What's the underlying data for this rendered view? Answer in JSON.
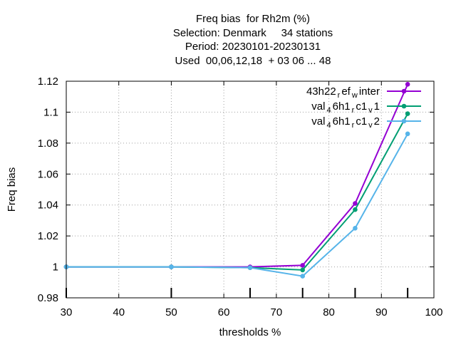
{
  "chart_data": {
    "type": "line",
    "title_lines": [
      "Freq bias  for Rh2m (%)",
      "Selection: Denmark     34 stations",
      "Period: 20230101-20230131",
      "Used  00,06,12,18  + 03 06 ... 48"
    ],
    "xlabel": "thresholds %",
    "ylabel": "Freq bias",
    "xlim": [
      30,
      100
    ],
    "ylim": [
      0.98,
      1.12
    ],
    "x_ticks": [
      30,
      40,
      50,
      60,
      70,
      80,
      90,
      100
    ],
    "y_ticks": [
      0.98,
      1,
      1.02,
      1.04,
      1.06,
      1.08,
      1.1,
      1.12
    ],
    "y_tick_labels": [
      "0.98",
      "1",
      "1.02",
      "1.04",
      "1.06",
      "1.08",
      "1.1",
      "1.12"
    ],
    "grid": true,
    "legend_position": "top-right",
    "data_marker_x": [
      30,
      50,
      65,
      75,
      85,
      95
    ],
    "series": [
      {
        "name_parts": {
          "base": "43h22",
          "sub1": "r",
          "mid": "ef",
          "sub2": "w",
          "tail": "inter"
        },
        "color": "#9400d3",
        "x": [
          30,
          50,
          65,
          75,
          85,
          95
        ],
        "y": [
          1.0,
          1.0,
          1.0,
          1.001,
          1.041,
          1.118
        ]
      },
      {
        "name_parts": {
          "base": "val",
          "sub1": "4",
          "mid": "6h1",
          "sub2": "r",
          "tail": "c1",
          "sub3": "v",
          "tail2": "1"
        },
        "color": "#009e73",
        "x": [
          30,
          50,
          65,
          75,
          85,
          95
        ],
        "y": [
          1.0,
          1.0,
          0.9995,
          0.998,
          1.037,
          1.099
        ]
      },
      {
        "name_parts": {
          "base": "val",
          "sub1": "4",
          "mid": "6h1",
          "sub2": "r",
          "tail": "c1",
          "sub3": "v",
          "tail2": "2"
        },
        "color": "#56b4e9",
        "x": [
          30,
          50,
          65,
          75,
          85,
          95
        ],
        "y": [
          1.0,
          1.0,
          0.9995,
          0.994,
          1.025,
          1.086
        ]
      }
    ]
  }
}
